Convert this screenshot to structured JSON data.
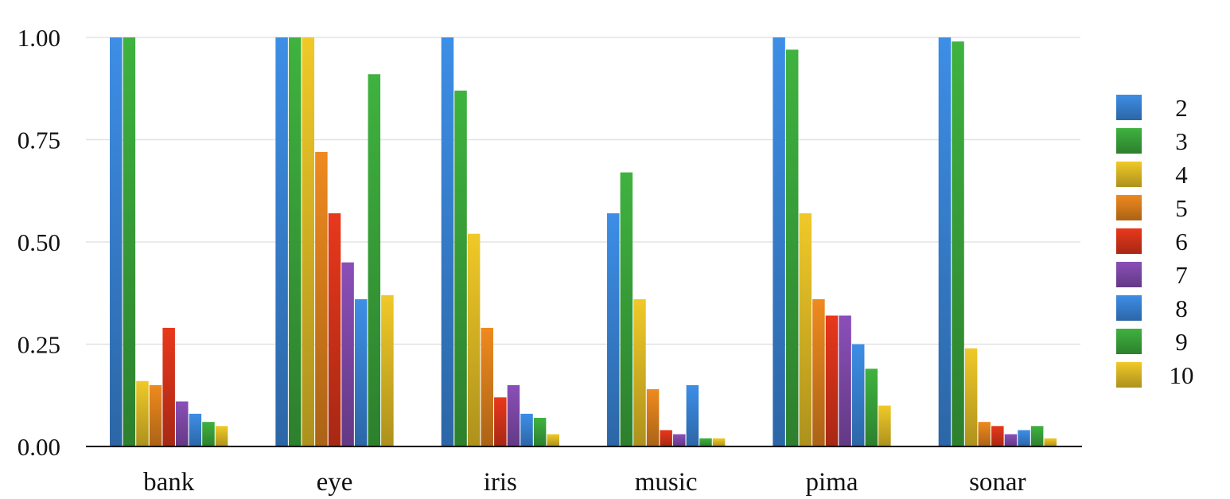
{
  "chart_data": {
    "type": "bar",
    "categories": [
      "bank",
      "eye",
      "iris",
      "music",
      "pima",
      "sonar"
    ],
    "ylim": [
      0,
      1
    ],
    "yticks": [
      "0.00",
      "0.25",
      "0.50",
      "0.75",
      "1.00"
    ],
    "ytick_values": [
      0,
      0.25,
      0.5,
      0.75,
      1.0
    ],
    "grid": true,
    "legend_position": "right",
    "series": [
      {
        "name": "2",
        "color": "#3d8ee6",
        "values": [
          1.0,
          1.0,
          1.0,
          0.57,
          1.0,
          1.0
        ]
      },
      {
        "name": "3",
        "color": "#3fb23f",
        "values": [
          1.0,
          1.0,
          0.87,
          0.67,
          0.97,
          0.99
        ]
      },
      {
        "name": "4",
        "color": "#f0c928",
        "values": [
          0.16,
          1.0,
          0.52,
          0.36,
          0.57,
          0.24
        ]
      },
      {
        "name": "5",
        "color": "#ee8a1f",
        "values": [
          0.15,
          0.72,
          0.29,
          0.14,
          0.36,
          0.06
        ]
      },
      {
        "name": "6",
        "color": "#e8381c",
        "values": [
          0.29,
          0.57,
          0.12,
          0.04,
          0.32,
          0.05
        ]
      },
      {
        "name": "7",
        "color": "#8a4fb8",
        "values": [
          0.11,
          0.45,
          0.15,
          0.03,
          0.32,
          0.03
        ]
      },
      {
        "name": "8",
        "color": "#3d8ee6",
        "values": [
          0.08,
          0.36,
          0.08,
          0.15,
          0.25,
          0.04
        ]
      },
      {
        "name": "9",
        "color": "#3fb23f",
        "values": [
          0.06,
          0.91,
          0.07,
          0.02,
          0.19,
          0.05
        ]
      },
      {
        "name": "10",
        "color": "#f0c928",
        "values": [
          0.05,
          0.37,
          0.03,
          0.02,
          0.1,
          0.02
        ]
      }
    ]
  }
}
